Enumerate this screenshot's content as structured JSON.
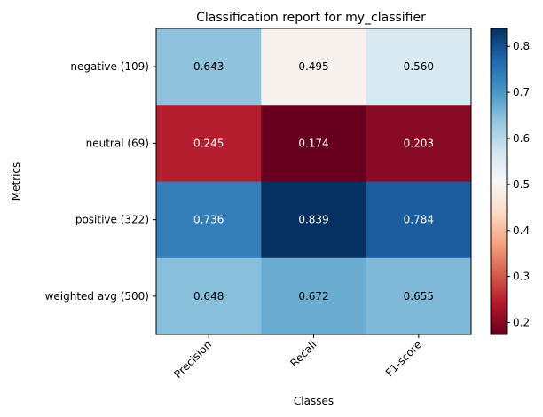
{
  "chart_data": {
    "type": "heatmap",
    "title": "Classification report for my_classifier",
    "xlabel": "Classes",
    "ylabel": "Metrics",
    "columns": [
      "Precision",
      "Recall",
      "F1-score"
    ],
    "rows": [
      "negative (109)",
      "neutral (69)",
      "positive (322)",
      "weighted avg (500)"
    ],
    "values": [
      [
        0.643,
        0.495,
        0.56
      ],
      [
        0.245,
        0.174,
        0.203
      ],
      [
        0.736,
        0.839,
        0.784
      ],
      [
        0.648,
        0.672,
        0.655
      ]
    ],
    "value_labels": [
      [
        "0.643",
        "0.495",
        "0.560"
      ],
      [
        "0.245",
        "0.174",
        "0.203"
      ],
      [
        "0.736",
        "0.839",
        "0.784"
      ],
      [
        "0.648",
        "0.672",
        "0.655"
      ]
    ],
    "colormap": "RdBu",
    "color_range": [
      0.174,
      0.839
    ],
    "colorbar_ticks": [
      "0.2",
      "0.3",
      "0.4",
      "0.5",
      "0.6",
      "0.7",
      "0.8"
    ],
    "colorbar_tick_values": [
      0.2,
      0.3,
      0.4,
      0.5,
      0.6,
      0.7,
      0.8
    ],
    "xtick_rotation": 45,
    "grid": false
  }
}
